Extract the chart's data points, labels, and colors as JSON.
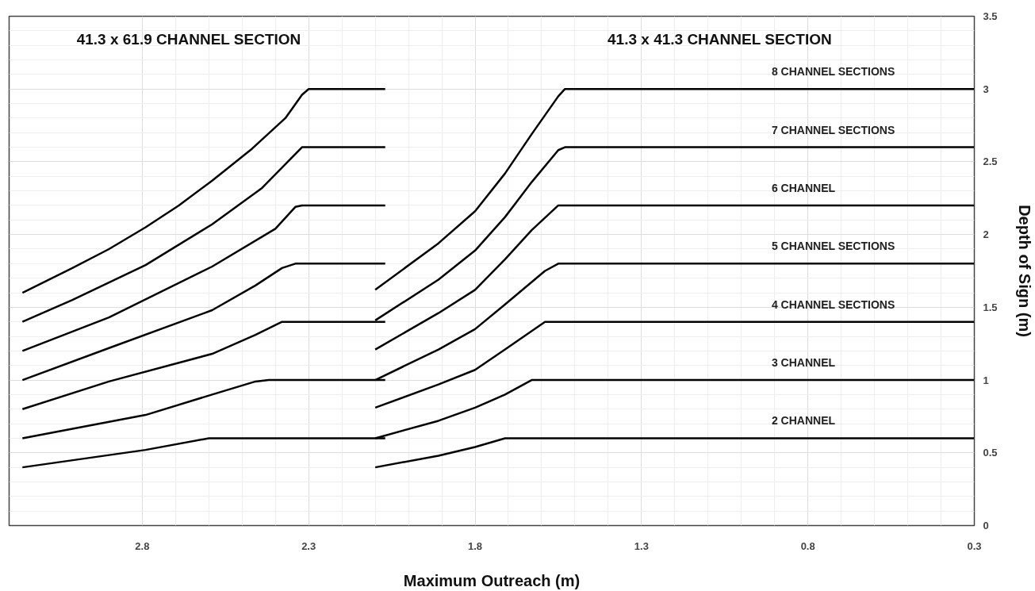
{
  "chart_data": {
    "type": "line",
    "xlabel": "Maximum Outreach (m)",
    "ylabel": "Depth of Sign (m)",
    "xlim": [
      3.2,
      0.3
    ],
    "xticks": [
      2.8,
      2.3,
      1.8,
      1.3,
      0.8,
      0.3
    ],
    "ylim": [
      0,
      3.5
    ],
    "yticks": [
      0,
      0.5,
      1,
      1.5,
      2,
      2.5,
      3,
      3.5
    ],
    "grid": true,
    "line_style": "solid",
    "marker": "none",
    "series": [
      {
        "color": "#000000",
        "x": [
          3.16,
          3.01,
          2.9,
          2.79,
          2.69,
          2.59,
          2.47,
          2.37,
          2.32,
          2.3,
          2.07
        ],
        "values": [
          1.6,
          1.77,
          1.9,
          2.05,
          2.2,
          2.37,
          2.59,
          2.8,
          2.96,
          3.0,
          3.0
        ]
      },
      {
        "color": "#000000",
        "x": [
          3.16,
          3.01,
          2.79,
          2.59,
          2.44,
          2.32,
          2.07
        ],
        "values": [
          1.4,
          1.55,
          1.79,
          2.07,
          2.32,
          2.6,
          2.6
        ]
      },
      {
        "color": "#000000",
        "x": [
          3.16,
          2.9,
          2.59,
          2.4,
          2.34,
          2.32,
          2.07
        ],
        "values": [
          1.2,
          1.43,
          1.78,
          2.04,
          2.19,
          2.2,
          2.2
        ]
      },
      {
        "color": "#000000",
        "x": [
          3.16,
          2.9,
          2.59,
          2.46,
          2.38,
          2.34,
          2.07
        ],
        "values": [
          1.0,
          1.22,
          1.48,
          1.65,
          1.77,
          1.8,
          1.8
        ]
      },
      {
        "color": "#000000",
        "x": [
          3.16,
          2.9,
          2.59,
          2.46,
          2.38,
          2.07
        ],
        "values": [
          0.8,
          0.99,
          1.18,
          1.31,
          1.4,
          1.4
        ]
      },
      {
        "color": "#000000",
        "x": [
          3.16,
          2.79,
          2.59,
          2.46,
          2.42,
          2.07
        ],
        "values": [
          0.6,
          0.76,
          0.9,
          0.99,
          1.0,
          1.0
        ]
      },
      {
        "color": "#000000",
        "x": [
          3.16,
          2.79,
          2.6,
          2.07
        ],
        "values": [
          0.4,
          0.52,
          0.6,
          0.6
        ]
      },
      {
        "color": "#000000",
        "x": [
          2.1,
          1.91,
          1.8,
          1.71,
          1.63,
          1.55,
          1.53,
          0.3
        ],
        "values": [
          1.62,
          1.94,
          2.16,
          2.42,
          2.69,
          2.95,
          3.0,
          3.0
        ]
      },
      {
        "color": "#000000",
        "x": [
          2.1,
          1.91,
          1.8,
          1.71,
          1.63,
          1.55,
          1.53,
          0.3
        ],
        "values": [
          1.41,
          1.69,
          1.89,
          2.12,
          2.36,
          2.58,
          2.6,
          2.6
        ]
      },
      {
        "color": "#000000",
        "x": [
          2.1,
          1.91,
          1.8,
          1.71,
          1.63,
          1.55,
          0.3
        ],
        "values": [
          1.21,
          1.46,
          1.62,
          1.83,
          2.03,
          2.2,
          2.2
        ]
      },
      {
        "color": "#000000",
        "x": [
          2.1,
          1.91,
          1.8,
          1.71,
          1.59,
          1.55,
          0.3
        ],
        "values": [
          1.0,
          1.21,
          1.35,
          1.52,
          1.75,
          1.8,
          1.8
        ]
      },
      {
        "color": "#000000",
        "x": [
          2.1,
          1.91,
          1.8,
          1.71,
          1.59,
          0.3
        ],
        "values": [
          0.81,
          0.97,
          1.07,
          1.21,
          1.4,
          1.4
        ]
      },
      {
        "color": "#000000",
        "x": [
          2.1,
          1.91,
          1.8,
          1.71,
          1.63,
          0.3
        ],
        "values": [
          0.6,
          0.72,
          0.81,
          0.9,
          1.0,
          1.0
        ]
      },
      {
        "color": "#000000",
        "x": [
          2.1,
          1.91,
          1.8,
          1.71,
          0.3
        ],
        "values": [
          0.4,
          0.48,
          0.54,
          0.6,
          0.6
        ]
      }
    ],
    "annotations": [
      "41.3 x 61.9 CHANNEL SECTION",
      "41.3 x 41.3 CHANNEL SECTION",
      "8 CHANNEL SECTIONS",
      "7 CHANNEL SECTIONS",
      "6 CHANNEL",
      "5 CHANNEL SECTIONS",
      "4 CHANNEL SECTIONS",
      "3 CHANNEL",
      "2 CHANNEL"
    ]
  }
}
